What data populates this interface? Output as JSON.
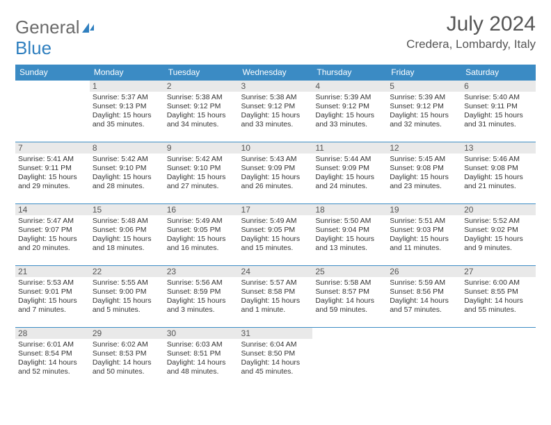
{
  "logo": {
    "text_gray": "General",
    "text_blue": "Blue"
  },
  "title": "July 2024",
  "location": "Credera, Lombardy, Italy",
  "colors": {
    "header_bg": "#3b8bc4",
    "header_text": "#ffffff",
    "daynum_bg": "#e9e9e9",
    "border": "#3b8bc4",
    "text": "#333333"
  },
  "weekdays": [
    "Sunday",
    "Monday",
    "Tuesday",
    "Wednesday",
    "Thursday",
    "Friday",
    "Saturday"
  ],
  "weeks": [
    [
      {
        "empty": true
      },
      {
        "n": "1",
        "sr": "5:37 AM",
        "ss": "9:13 PM",
        "dl": "15 hours and 35 minutes."
      },
      {
        "n": "2",
        "sr": "5:38 AM",
        "ss": "9:12 PM",
        "dl": "15 hours and 34 minutes."
      },
      {
        "n": "3",
        "sr": "5:38 AM",
        "ss": "9:12 PM",
        "dl": "15 hours and 33 minutes."
      },
      {
        "n": "4",
        "sr": "5:39 AM",
        "ss": "9:12 PM",
        "dl": "15 hours and 33 minutes."
      },
      {
        "n": "5",
        "sr": "5:39 AM",
        "ss": "9:12 PM",
        "dl": "15 hours and 32 minutes."
      },
      {
        "n": "6",
        "sr": "5:40 AM",
        "ss": "9:11 PM",
        "dl": "15 hours and 31 minutes."
      }
    ],
    [
      {
        "n": "7",
        "sr": "5:41 AM",
        "ss": "9:11 PM",
        "dl": "15 hours and 29 minutes."
      },
      {
        "n": "8",
        "sr": "5:42 AM",
        "ss": "9:10 PM",
        "dl": "15 hours and 28 minutes."
      },
      {
        "n": "9",
        "sr": "5:42 AM",
        "ss": "9:10 PM",
        "dl": "15 hours and 27 minutes."
      },
      {
        "n": "10",
        "sr": "5:43 AM",
        "ss": "9:09 PM",
        "dl": "15 hours and 26 minutes."
      },
      {
        "n": "11",
        "sr": "5:44 AM",
        "ss": "9:09 PM",
        "dl": "15 hours and 24 minutes."
      },
      {
        "n": "12",
        "sr": "5:45 AM",
        "ss": "9:08 PM",
        "dl": "15 hours and 23 minutes."
      },
      {
        "n": "13",
        "sr": "5:46 AM",
        "ss": "9:08 PM",
        "dl": "15 hours and 21 minutes."
      }
    ],
    [
      {
        "n": "14",
        "sr": "5:47 AM",
        "ss": "9:07 PM",
        "dl": "15 hours and 20 minutes."
      },
      {
        "n": "15",
        "sr": "5:48 AM",
        "ss": "9:06 PM",
        "dl": "15 hours and 18 minutes."
      },
      {
        "n": "16",
        "sr": "5:49 AM",
        "ss": "9:05 PM",
        "dl": "15 hours and 16 minutes."
      },
      {
        "n": "17",
        "sr": "5:49 AM",
        "ss": "9:05 PM",
        "dl": "15 hours and 15 minutes."
      },
      {
        "n": "18",
        "sr": "5:50 AM",
        "ss": "9:04 PM",
        "dl": "15 hours and 13 minutes."
      },
      {
        "n": "19",
        "sr": "5:51 AM",
        "ss": "9:03 PM",
        "dl": "15 hours and 11 minutes."
      },
      {
        "n": "20",
        "sr": "5:52 AM",
        "ss": "9:02 PM",
        "dl": "15 hours and 9 minutes."
      }
    ],
    [
      {
        "n": "21",
        "sr": "5:53 AM",
        "ss": "9:01 PM",
        "dl": "15 hours and 7 minutes."
      },
      {
        "n": "22",
        "sr": "5:55 AM",
        "ss": "9:00 PM",
        "dl": "15 hours and 5 minutes."
      },
      {
        "n": "23",
        "sr": "5:56 AM",
        "ss": "8:59 PM",
        "dl": "15 hours and 3 minutes."
      },
      {
        "n": "24",
        "sr": "5:57 AM",
        "ss": "8:58 PM",
        "dl": "15 hours and 1 minute."
      },
      {
        "n": "25",
        "sr": "5:58 AM",
        "ss": "8:57 PM",
        "dl": "14 hours and 59 minutes."
      },
      {
        "n": "26",
        "sr": "5:59 AM",
        "ss": "8:56 PM",
        "dl": "14 hours and 57 minutes."
      },
      {
        "n": "27",
        "sr": "6:00 AM",
        "ss": "8:55 PM",
        "dl": "14 hours and 55 minutes."
      }
    ],
    [
      {
        "n": "28",
        "sr": "6:01 AM",
        "ss": "8:54 PM",
        "dl": "14 hours and 52 minutes."
      },
      {
        "n": "29",
        "sr": "6:02 AM",
        "ss": "8:53 PM",
        "dl": "14 hours and 50 minutes."
      },
      {
        "n": "30",
        "sr": "6:03 AM",
        "ss": "8:51 PM",
        "dl": "14 hours and 48 minutes."
      },
      {
        "n": "31",
        "sr": "6:04 AM",
        "ss": "8:50 PM",
        "dl": "14 hours and 45 minutes."
      },
      {
        "empty": true
      },
      {
        "empty": true
      },
      {
        "empty": true
      }
    ]
  ],
  "labels": {
    "sunrise": "Sunrise: ",
    "sunset": "Sunset: ",
    "daylight": "Daylight: "
  }
}
